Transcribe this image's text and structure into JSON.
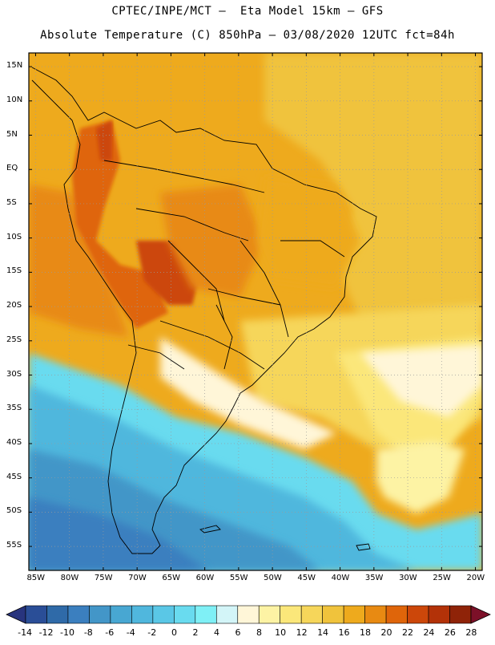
{
  "header": {
    "line1": "CPTEC/INPE/MCT –  Eta Model 15km – GFS",
    "line2": "Absolute Temperature (C) 850hPa – 03/08/2020 12UTC fct=84h"
  },
  "map": {
    "lat_labels": [
      "15N",
      "10N",
      "5N",
      "EQ",
      "5S",
      "10S",
      "15S",
      "20S",
      "25S",
      "30S",
      "35S",
      "40S",
      "45S",
      "50S",
      "55S"
    ],
    "lon_labels": [
      "85W",
      "80W",
      "75W",
      "70W",
      "65W",
      "60W",
      "55W",
      "50W",
      "45W",
      "40W",
      "35W",
      "30W",
      "25W",
      "20W"
    ]
  },
  "colorbar": {
    "labels": [
      "-14",
      "-12",
      "-10",
      "-8",
      "-6",
      "-4",
      "-2",
      "0",
      "2",
      "4",
      "6",
      "8",
      "10",
      "12",
      "14",
      "16",
      "18",
      "20",
      "22",
      "24",
      "26",
      "28"
    ],
    "colors": [
      "#2a4e97",
      "#2f6aa8",
      "#3b7fbf",
      "#4396c8",
      "#48a7d2",
      "#50b7dd",
      "#5ac7e6",
      "#69dbef",
      "#7ff0f6",
      "#d3f5f8",
      "#fff6d8",
      "#fdf3a4",
      "#fbe77a",
      "#f6d65a",
      "#f0c33c",
      "#eeaa1d",
      "#e88a12",
      "#df650a",
      "#cc470a",
      "#b33208",
      "#8f2308"
    ],
    "under_color": "#28347e",
    "over_color": "#7c1028"
  }
}
